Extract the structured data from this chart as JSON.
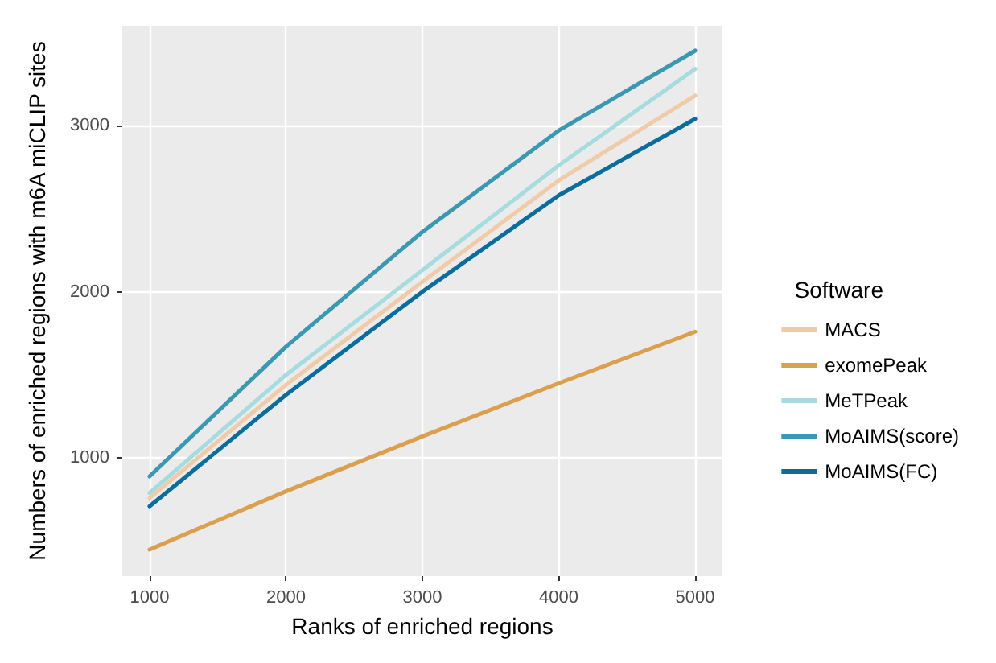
{
  "chart_data": {
    "type": "line",
    "xlabel": "Ranks of enriched regions",
    "ylabel": "Numbers of enriched regions with m6A miCLIP sites",
    "legend_title": "Software",
    "legend": "right",
    "grid": true,
    "line_style": "solid",
    "marker": "none",
    "x": [
      1000,
      2000,
      3000,
      4000,
      5000
    ],
    "xlim": [
      800,
      5200
    ],
    "xticks": [
      1000,
      2000,
      3000,
      4000,
      5000
    ],
    "ylim": [
      290,
      3600
    ],
    "yticks": [
      1000,
      2000,
      3000
    ],
    "series": [
      {
        "name": "MACS",
        "color": "#f0cba8",
        "values": [
          760,
          1440,
          2060,
          2670,
          3180
        ]
      },
      {
        "name": "exomePeak",
        "color": "#dba04f",
        "values": [
          450,
          800,
          1130,
          1450,
          1760
        ]
      },
      {
        "name": "MeTPeak",
        "color": "#a6dcdf",
        "values": [
          790,
          1500,
          2130,
          2760,
          3340
        ]
      },
      {
        "name": "MoAIMS(score)",
        "color": "#3a98b0",
        "values": [
          890,
          1670,
          2360,
          2970,
          3450
        ]
      },
      {
        "name": "MoAIMS(FC)",
        "color": "#0a6d9c",
        "values": [
          710,
          1380,
          2000,
          2580,
          3040
        ]
      }
    ]
  }
}
